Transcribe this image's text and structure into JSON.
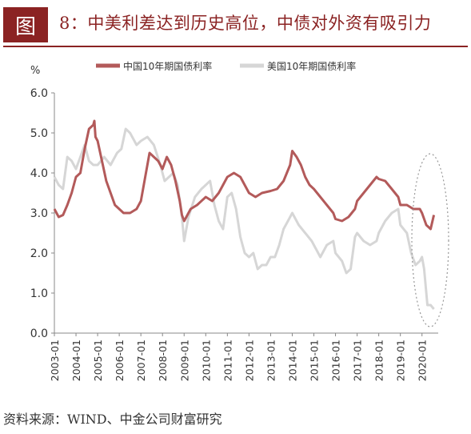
{
  "header": {
    "figure_label": "图",
    "title": "8：中美利差达到历史高位，中债对外资有吸引力"
  },
  "source": "资料来源：WIND、中金公司财富研究",
  "chart_data": {
    "type": "line",
    "title": "8：中美利差达到历史高位，中债对外资有吸引力",
    "ylabel": "%",
    "xlabel": "",
    "ylim": [
      0,
      6
    ],
    "yticks": [
      "0.0",
      "1.0",
      "2.0",
      "3.0",
      "4.0",
      "5.0",
      "6.0"
    ],
    "xlim": [
      2003.0,
      2020.75
    ],
    "xticks": [
      "2003-01",
      "2004-01",
      "2005-01",
      "2006-01",
      "2007-01",
      "2008-01",
      "2009-01",
      "2010-01",
      "2011-01",
      "2012-01",
      "2013-01",
      "2014-01",
      "2015-01",
      "2016-01",
      "2017-01",
      "2018-01",
      "2019-01",
      "2020-01"
    ],
    "legend_position": "top",
    "grid": false,
    "series": [
      {
        "name": "中国10年期国债利率",
        "color": "#b35a5a",
        "x": [
          2003.0,
          2003.2,
          2003.4,
          2003.6,
          2003.8,
          2004.0,
          2004.2,
          2004.4,
          2004.6,
          2004.8,
          2004.85,
          2004.9,
          2005.0,
          2005.2,
          2005.4,
          2005.6,
          2005.8,
          2006.0,
          2006.2,
          2006.5,
          2006.8,
          2007.0,
          2007.2,
          2007.4,
          2007.6,
          2007.8,
          2008.0,
          2008.2,
          2008.4,
          2008.6,
          2008.8,
          2008.9,
          2009.0,
          2009.3,
          2009.6,
          2010.0,
          2010.3,
          2010.6,
          2010.9,
          2011.0,
          2011.3,
          2011.6,
          2011.9,
          2012.0,
          2012.3,
          2012.6,
          2013.0,
          2013.3,
          2013.6,
          2013.9,
          2014.0,
          2014.2,
          2014.4,
          2014.6,
          2014.8,
          2015.0,
          2015.3,
          2015.6,
          2015.9,
          2016.0,
          2016.3,
          2016.6,
          2016.9,
          2017.0,
          2017.3,
          2017.6,
          2017.9,
          2018.0,
          2018.3,
          2018.6,
          2018.9,
          2019.0,
          2019.3,
          2019.6,
          2019.9,
          2020.0,
          2020.2,
          2020.4,
          2020.55
        ],
        "values": [
          3.1,
          2.9,
          2.95,
          3.2,
          3.5,
          3.9,
          4.0,
          4.6,
          5.1,
          5.2,
          5.3,
          4.9,
          4.8,
          4.3,
          3.8,
          3.5,
          3.2,
          3.1,
          3.0,
          3.0,
          3.1,
          3.3,
          3.9,
          4.5,
          4.4,
          4.3,
          4.1,
          4.4,
          4.2,
          3.8,
          3.3,
          2.95,
          2.8,
          3.1,
          3.2,
          3.4,
          3.3,
          3.5,
          3.8,
          3.9,
          4.0,
          3.9,
          3.6,
          3.5,
          3.4,
          3.5,
          3.55,
          3.6,
          3.8,
          4.2,
          4.55,
          4.4,
          4.2,
          3.9,
          3.7,
          3.6,
          3.4,
          3.2,
          3.0,
          2.85,
          2.8,
          2.9,
          3.1,
          3.3,
          3.5,
          3.7,
          3.9,
          3.85,
          3.8,
          3.6,
          3.4,
          3.2,
          3.2,
          3.1,
          3.1,
          3.0,
          2.7,
          2.6,
          2.95
        ]
      },
      {
        "name": "美国10年期国债利率",
        "color": "#d6d6d6",
        "x": [
          2003.0,
          2003.2,
          2003.4,
          2003.6,
          2003.8,
          2004.0,
          2004.2,
          2004.4,
          2004.6,
          2004.8,
          2005.0,
          2005.3,
          2005.6,
          2005.9,
          2006.1,
          2006.3,
          2006.5,
          2006.8,
          2007.0,
          2007.3,
          2007.6,
          2007.9,
          2008.1,
          2008.3,
          2008.5,
          2008.7,
          2008.9,
          2009.0,
          2009.2,
          2009.5,
          2009.8,
          2010.0,
          2010.2,
          2010.4,
          2010.6,
          2010.8,
          2011.0,
          2011.2,
          2011.4,
          2011.6,
          2011.8,
          2012.0,
          2012.2,
          2012.4,
          2012.6,
          2012.8,
          2013.0,
          2013.2,
          2013.4,
          2013.6,
          2013.8,
          2014.0,
          2014.3,
          2014.6,
          2014.9,
          2015.0,
          2015.3,
          2015.6,
          2015.9,
          2016.0,
          2016.3,
          2016.5,
          2016.7,
          2016.9,
          2017.0,
          2017.3,
          2017.6,
          2017.9,
          2018.0,
          2018.3,
          2018.6,
          2018.9,
          2019.0,
          2019.3,
          2019.5,
          2019.7,
          2019.9,
          2020.0,
          2020.1,
          2020.25,
          2020.4,
          2020.55
        ],
        "values": [
          3.9,
          3.7,
          3.6,
          4.4,
          4.3,
          4.1,
          4.4,
          4.7,
          4.3,
          4.2,
          4.2,
          4.4,
          4.2,
          4.5,
          4.6,
          5.1,
          5.0,
          4.7,
          4.8,
          4.9,
          4.7,
          4.2,
          3.8,
          3.9,
          4.0,
          3.7,
          2.9,
          2.3,
          2.9,
          3.4,
          3.6,
          3.7,
          3.8,
          3.2,
          2.8,
          2.6,
          3.4,
          3.5,
          3.1,
          2.4,
          2.0,
          1.9,
          2.0,
          1.6,
          1.7,
          1.7,
          1.9,
          1.9,
          2.2,
          2.6,
          2.8,
          3.0,
          2.7,
          2.5,
          2.3,
          2.2,
          1.9,
          2.2,
          2.3,
          2.0,
          1.8,
          1.5,
          1.6,
          2.4,
          2.5,
          2.3,
          2.2,
          2.3,
          2.5,
          2.8,
          3.0,
          3.1,
          2.7,
          2.5,
          2.0,
          1.7,
          1.8,
          1.9,
          1.6,
          0.7,
          0.7,
          0.6
        ]
      }
    ],
    "annotation": "dotted ellipse highlighting 2020 divergence"
  }
}
